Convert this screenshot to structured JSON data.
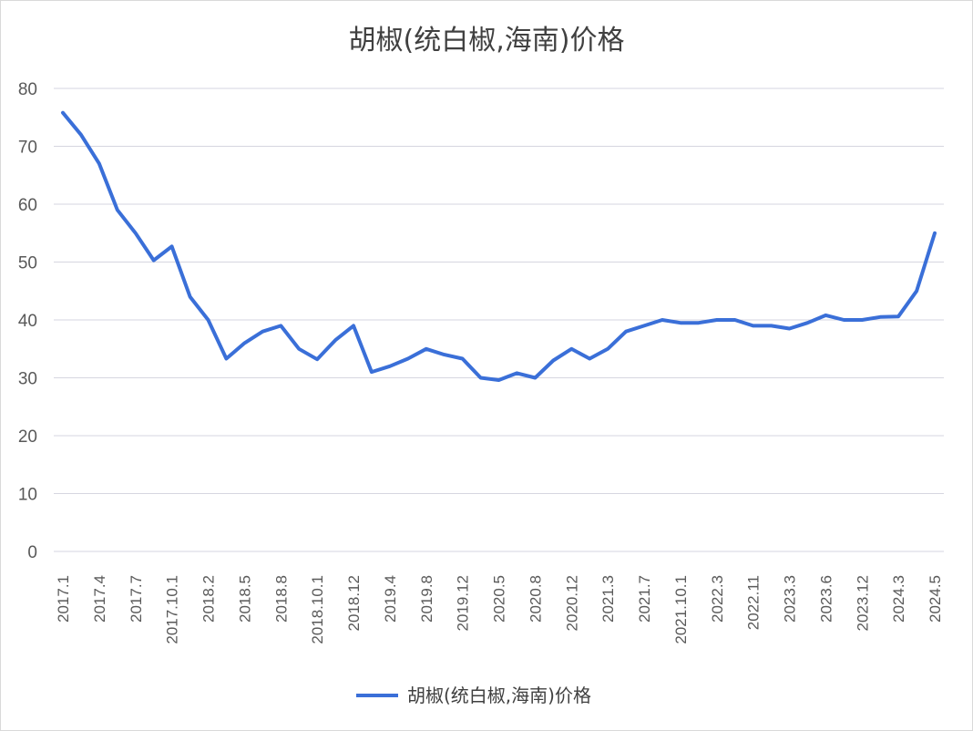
{
  "chart_data": {
    "type": "line",
    "title": "胡椒(统白椒,海南)价格",
    "xlabel": "",
    "ylabel": "",
    "ylim": [
      0,
      80
    ],
    "yticks": [
      "0",
      "10",
      "20",
      "30",
      "40",
      "50",
      "60",
      "70",
      "80"
    ],
    "grid": true,
    "legend_position": "bottom",
    "color": "#3A6FD8",
    "x_tick_labels": [
      "2017.1",
      "2017.4",
      "2017.7",
      "2017.10.1",
      "2018.2",
      "2018.5",
      "2018.8",
      "2018.10.1",
      "2018.12",
      "2019.4",
      "2019.8",
      "2019.12",
      "2020.5",
      "2020.8",
      "2020.12",
      "2021.3",
      "2021.7",
      "2021.10.1",
      "2022.3",
      "2022.11",
      "2023.3",
      "2023.6",
      "2023.12",
      "2024.3",
      "2024.5"
    ],
    "series": [
      {
        "name": "胡椒(统白椒,海南)价格",
        "values": [
          75.8,
          72,
          67,
          59,
          55,
          50.3,
          52.7,
          44,
          40,
          33.3,
          36,
          38,
          39,
          35,
          33.2,
          36.5,
          39,
          31,
          32,
          33.3,
          35,
          34,
          33.3,
          30,
          29.6,
          30.8,
          30,
          33,
          35,
          33.3,
          35,
          38,
          39,
          40,
          39.5,
          39.5,
          40,
          40,
          39,
          39,
          38.5,
          39.5,
          40.8,
          40,
          40,
          40.5,
          40.6,
          45,
          55
        ]
      }
    ]
  }
}
